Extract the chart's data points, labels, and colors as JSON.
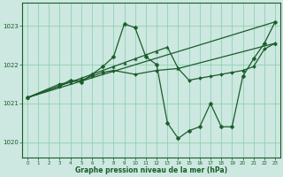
{
  "title": "Graphe pression niveau de la mer (hPa)",
  "background_color": "#cce8e0",
  "grid_color": "#88ccaa",
  "line_color": "#1a5c2a",
  "ylim": [
    1019.6,
    1023.6
  ],
  "xlim": [
    -0.5,
    23.5
  ],
  "yticks": [
    1020,
    1021,
    1022,
    1023
  ],
  "xticks": [
    0,
    1,
    2,
    3,
    4,
    5,
    6,
    7,
    8,
    9,
    10,
    11,
    12,
    13,
    14,
    15,
    16,
    17,
    18,
    19,
    20,
    21,
    22,
    23
  ],
  "line1_x": [
    0,
    23
  ],
  "line1_y": [
    1021.15,
    1023.1
  ],
  "line2_x": [
    0,
    3,
    4,
    5,
    6,
    7,
    8,
    9,
    10,
    11,
    12,
    13,
    14,
    23
  ],
  "line2_y": [
    1021.15,
    1021.45,
    1021.55,
    1021.65,
    1021.75,
    1021.85,
    1021.95,
    1022.05,
    1022.15,
    1022.25,
    1022.35,
    1022.45,
    1021.9,
    1022.55
  ],
  "line3_x": [
    0,
    3,
    4,
    5,
    6,
    7,
    8,
    9,
    10,
    11,
    12,
    13,
    14,
    15,
    16,
    17,
    18,
    19,
    20,
    21,
    22,
    23
  ],
  "line3_y": [
    1021.15,
    1021.45,
    1021.6,
    1021.55,
    1021.75,
    1021.95,
    1022.2,
    1023.05,
    1022.95,
    1022.2,
    1022.0,
    1020.5,
    1020.1,
    1020.3,
    1020.4,
    1021.0,
    1020.4,
    1020.4,
    1021.7,
    1022.15,
    1022.55,
    1023.1
  ],
  "line4_x": [
    0,
    3,
    5,
    6,
    7,
    8,
    10,
    12,
    14,
    15,
    16,
    17,
    18,
    19,
    20,
    21,
    22,
    23
  ],
  "line4_y": [
    1021.15,
    1021.5,
    1021.6,
    1021.7,
    1021.8,
    1021.85,
    1021.75,
    1021.85,
    1021.9,
    1021.6,
    1021.65,
    1021.7,
    1021.75,
    1021.8,
    1021.85,
    1021.95,
    1022.4,
    1022.55
  ]
}
